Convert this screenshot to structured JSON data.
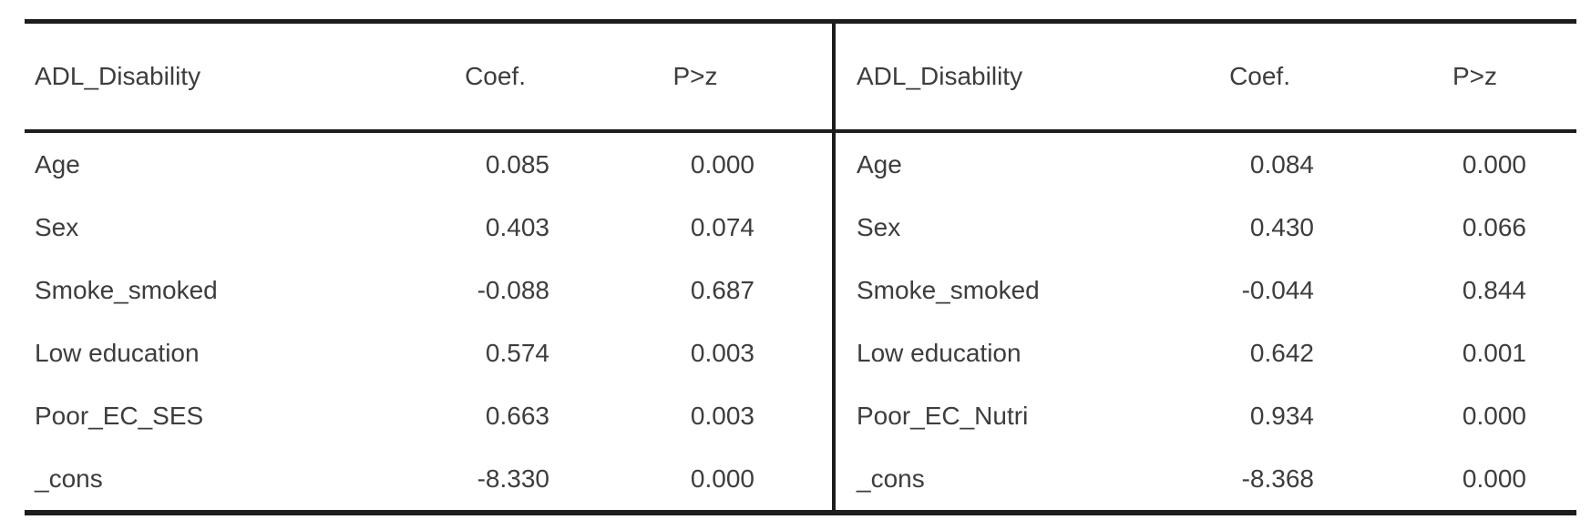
{
  "colors": {
    "text": "#3d3d3d",
    "rule": "#1d1d1d",
    "background": "#ffffff"
  },
  "panels": [
    {
      "header": {
        "variable": "ADL_Disability",
        "coef": "Coef.",
        "p": "P>z"
      },
      "rows": [
        {
          "variable": "Age",
          "coef": "0.085",
          "p": "0.000"
        },
        {
          "variable": "Sex",
          "coef": "0.403",
          "p": "0.074"
        },
        {
          "variable": "Smoke_smoked",
          "coef": "-0.088",
          "p": "0.687"
        },
        {
          "variable": "Low education",
          "coef": "0.574",
          "p": "0.003"
        },
        {
          "variable": "Poor_EC_SES",
          "coef": "0.663",
          "p": "0.003"
        },
        {
          "variable": "_cons",
          "coef": "-8.330",
          "p": "0.000"
        }
      ]
    },
    {
      "header": {
        "variable": "ADL_Disability",
        "coef": "Coef.",
        "p": "P>z"
      },
      "rows": [
        {
          "variable": "Age",
          "coef": "0.084",
          "p": "0.000"
        },
        {
          "variable": "Sex",
          "coef": "0.430",
          "p": "0.066"
        },
        {
          "variable": "Smoke_smoked",
          "coef": "-0.044",
          "p": "0.844"
        },
        {
          "variable": "Low education",
          "coef": "0.642",
          "p": "0.001"
        },
        {
          "variable": "Poor_EC_Nutri",
          "coef": "0.934",
          "p": "0.000"
        },
        {
          "variable": "_cons",
          "coef": "-8.368",
          "p": "0.000"
        }
      ]
    }
  ]
}
